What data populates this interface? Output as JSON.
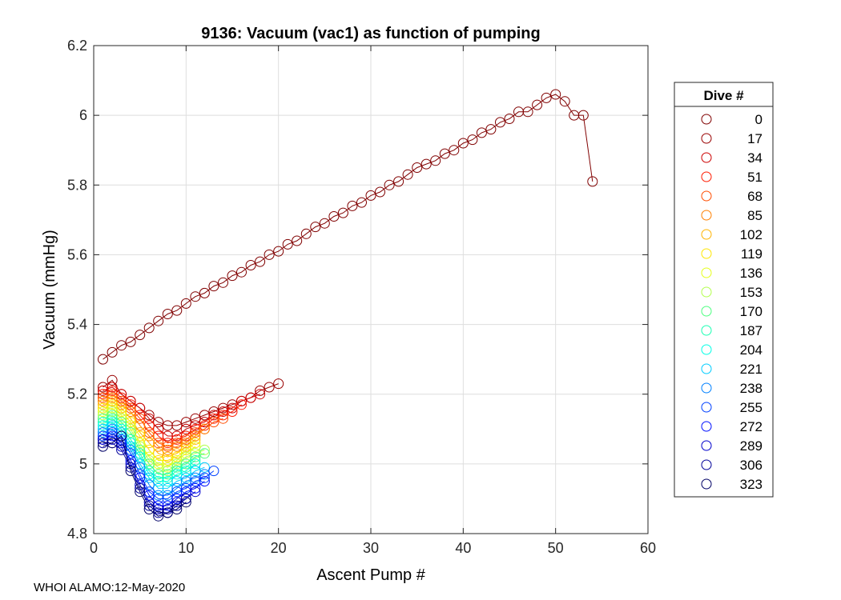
{
  "chart_data": {
    "type": "scatter",
    "title": "9136: Vacuum (vac1) as function of pumping",
    "xlabel": "Ascent Pump #",
    "ylabel": "Vacuum (mmHg)",
    "xlim": [
      0,
      60
    ],
    "ylim": [
      4.8,
      6.2
    ],
    "xticks": [
      0,
      10,
      20,
      30,
      40,
      50,
      60
    ],
    "yticks": [
      4.8,
      5,
      5.2,
      5.4,
      5.6,
      5.8,
      6,
      6.2
    ],
    "grid": true,
    "legend": {
      "title": "Dive #",
      "placement": "right",
      "entries": [
        {
          "label": "0",
          "color": "#800000"
        },
        {
          "label": "17",
          "color": "#990000"
        },
        {
          "label": "34",
          "color": "#cc0000"
        },
        {
          "label": "51",
          "color": "#ff1a00"
        },
        {
          "label": "68",
          "color": "#ff4d00"
        },
        {
          "label": "85",
          "color": "#ff8000"
        },
        {
          "label": "102",
          "color": "#ffb300"
        },
        {
          "label": "119",
          "color": "#ffe600"
        },
        {
          "label": "136",
          "color": "#e6ff1a"
        },
        {
          "label": "153",
          "color": "#b3ff4d"
        },
        {
          "label": "170",
          "color": "#4dff80"
        },
        {
          "label": "187",
          "color": "#1affb3"
        },
        {
          "label": "204",
          "color": "#00ffe6"
        },
        {
          "label": "221",
          "color": "#00ccff"
        },
        {
          "label": "238",
          "color": "#0080ff"
        },
        {
          "label": "255",
          "color": "#0040ff"
        },
        {
          "label": "272",
          "color": "#0010ff"
        },
        {
          "label": "289",
          "color": "#0000cc"
        },
        {
          "label": "306",
          "color": "#000099"
        },
        {
          "label": "323",
          "color": "#000066"
        }
      ]
    },
    "series": [
      {
        "name": "0",
        "color": "#800000",
        "x": [
          1,
          2,
          3,
          4,
          5,
          6,
          7,
          8,
          9,
          10,
          11,
          12,
          13,
          14,
          15,
          16,
          17,
          18,
          19,
          20,
          21,
          22,
          23,
          24,
          25,
          26,
          27,
          28,
          29,
          30,
          31,
          32,
          33,
          34,
          35,
          36,
          37,
          38,
          39,
          40,
          41,
          42,
          43,
          44,
          45,
          46,
          47,
          48,
          49,
          50,
          51,
          52,
          53,
          54
        ],
        "y": [
          5.3,
          5.32,
          5.34,
          5.35,
          5.37,
          5.39,
          5.41,
          5.43,
          5.44,
          5.46,
          5.48,
          5.49,
          5.51,
          5.52,
          5.54,
          5.55,
          5.57,
          5.58,
          5.6,
          5.61,
          5.63,
          5.64,
          5.66,
          5.68,
          5.69,
          5.71,
          5.72,
          5.74,
          5.75,
          5.77,
          5.78,
          5.8,
          5.81,
          5.83,
          5.85,
          5.86,
          5.87,
          5.89,
          5.9,
          5.92,
          5.93,
          5.95,
          5.96,
          5.98,
          5.99,
          6.01,
          6.01,
          6.03,
          6.05,
          6.06,
          6.04,
          6.0,
          6.0,
          5.81
        ]
      },
      {
        "name": "17",
        "color": "#990000",
        "x": [
          1,
          2,
          3,
          4,
          5,
          6,
          7,
          8,
          9,
          10,
          11,
          12,
          13,
          14,
          15,
          16,
          17,
          18,
          19,
          20
        ],
        "y": [
          5.22,
          5.24,
          5.2,
          5.18,
          5.16,
          5.14,
          5.12,
          5.11,
          5.11,
          5.12,
          5.13,
          5.14,
          5.15,
          5.16,
          5.17,
          5.18,
          5.19,
          5.21,
          5.22,
          5.23
        ]
      },
      {
        "name": "34",
        "color": "#cc0000",
        "x": [
          1,
          2,
          3,
          4,
          5,
          6,
          7,
          8,
          9,
          10,
          11,
          12,
          13,
          14,
          15,
          16,
          17,
          18
        ],
        "y": [
          5.21,
          5.22,
          5.2,
          5.18,
          5.16,
          5.13,
          5.1,
          5.08,
          5.08,
          5.1,
          5.11,
          5.12,
          5.14,
          5.15,
          5.16,
          5.18,
          5.19,
          5.2
        ]
      },
      {
        "name": "51",
        "color": "#ff1a00",
        "x": [
          1,
          2,
          3,
          4,
          5,
          6,
          7,
          8,
          9,
          10,
          11,
          12,
          13,
          14,
          15,
          16
        ],
        "y": [
          5.2,
          5.21,
          5.19,
          5.17,
          5.14,
          5.11,
          5.08,
          5.06,
          5.07,
          5.08,
          5.1,
          5.11,
          5.13,
          5.14,
          5.15,
          5.17
        ]
      },
      {
        "name": "68",
        "color": "#ff4d00",
        "x": [
          1,
          2,
          3,
          4,
          5,
          6,
          7,
          8,
          9,
          10,
          11,
          12,
          13,
          14
        ],
        "y": [
          5.19,
          5.2,
          5.18,
          5.16,
          5.13,
          5.09,
          5.06,
          5.05,
          5.06,
          5.07,
          5.09,
          5.1,
          5.12,
          5.13
        ]
      },
      {
        "name": "85",
        "color": "#ff8000",
        "x": [
          1,
          2,
          3,
          4,
          5,
          6,
          7,
          8,
          9,
          10,
          11,
          12
        ],
        "y": [
          5.18,
          5.19,
          5.17,
          5.15,
          5.11,
          5.08,
          5.05,
          5.04,
          5.05,
          5.06,
          5.08,
          5.1
        ]
      },
      {
        "name": "102",
        "color": "#ffb300",
        "x": [
          1,
          2,
          3,
          4,
          5,
          6,
          7,
          8,
          9,
          10,
          11
        ],
        "y": [
          5.17,
          5.18,
          5.16,
          5.13,
          5.09,
          5.06,
          5.03,
          5.02,
          5.03,
          5.05,
          5.07
        ]
      },
      {
        "name": "119",
        "color": "#ffe600",
        "x": [
          1,
          2,
          3,
          4,
          5,
          6,
          7,
          8,
          9,
          10,
          11
        ],
        "y": [
          5.16,
          5.17,
          5.15,
          5.12,
          5.08,
          5.04,
          5.01,
          5.01,
          5.02,
          5.04,
          5.06
        ]
      },
      {
        "name": "136",
        "color": "#e6ff1a",
        "x": [
          1,
          2,
          3,
          4,
          5,
          6,
          7,
          8,
          9,
          10,
          11
        ],
        "y": [
          5.15,
          5.16,
          5.14,
          5.11,
          5.06,
          5.02,
          5.0,
          4.99,
          5.01,
          5.03,
          5.05
        ]
      },
      {
        "name": "153",
        "color": "#b3ff4d",
        "x": [
          1,
          2,
          3,
          4,
          5,
          6,
          7,
          8,
          9,
          10,
          11,
          12
        ],
        "y": [
          5.14,
          5.15,
          5.13,
          5.1,
          5.05,
          5.01,
          4.99,
          4.98,
          5.0,
          5.02,
          5.03,
          5.04
        ]
      },
      {
        "name": "170",
        "color": "#4dff80",
        "x": [
          1,
          2,
          3,
          4,
          5,
          6,
          7,
          8,
          9,
          10,
          11,
          12
        ],
        "y": [
          5.13,
          5.14,
          5.12,
          5.09,
          5.04,
          5.0,
          4.97,
          4.97,
          4.99,
          5.0,
          5.02,
          5.03
        ]
      },
      {
        "name": "187",
        "color": "#1affb3",
        "x": [
          1,
          2,
          3,
          4,
          5,
          6,
          7,
          8,
          9,
          10,
          11
        ],
        "y": [
          5.12,
          5.13,
          5.11,
          5.07,
          5.03,
          4.98,
          4.96,
          4.96,
          4.98,
          4.99,
          5.01
        ]
      },
      {
        "name": "204",
        "color": "#00ffe6",
        "x": [
          1,
          2,
          3,
          4,
          5,
          6,
          7,
          8,
          9,
          10,
          11
        ],
        "y": [
          5.11,
          5.12,
          5.1,
          5.06,
          5.02,
          4.97,
          4.95,
          4.95,
          4.97,
          4.98,
          5.0
        ]
      },
      {
        "name": "221",
        "color": "#00ccff",
        "x": [
          1,
          2,
          3,
          4,
          5,
          6,
          7,
          8,
          9,
          10,
          11,
          12
        ],
        "y": [
          5.1,
          5.11,
          5.09,
          5.05,
          5.0,
          4.96,
          4.93,
          4.93,
          4.95,
          4.96,
          4.98,
          4.99
        ]
      },
      {
        "name": "238",
        "color": "#0080ff",
        "x": [
          1,
          2,
          3,
          4,
          5,
          6,
          7,
          8,
          9,
          10,
          11,
          12
        ],
        "y": [
          5.09,
          5.1,
          5.08,
          5.04,
          4.99,
          4.94,
          4.91,
          4.91,
          4.93,
          4.95,
          4.96,
          4.97
        ]
      },
      {
        "name": "255",
        "color": "#0040ff",
        "x": [
          1,
          2,
          3,
          4,
          5,
          6,
          7,
          8,
          9,
          10,
          11,
          12,
          13
        ],
        "y": [
          5.08,
          5.09,
          5.07,
          5.03,
          4.97,
          4.92,
          4.9,
          4.9,
          4.92,
          4.93,
          4.95,
          4.96,
          4.98
        ]
      },
      {
        "name": "272",
        "color": "#0010ff",
        "x": [
          1,
          2,
          3,
          4,
          5,
          6,
          7,
          8,
          9,
          10,
          11,
          12
        ],
        "y": [
          5.07,
          5.08,
          5.06,
          5.01,
          4.96,
          4.91,
          4.88,
          4.88,
          4.9,
          4.92,
          4.93,
          4.95
        ]
      },
      {
        "name": "289",
        "color": "#0000cc",
        "x": [
          1,
          2,
          3,
          4,
          5,
          6,
          7,
          8,
          9,
          10,
          11
        ],
        "y": [
          5.07,
          5.07,
          5.05,
          5.0,
          4.94,
          4.89,
          4.87,
          4.87,
          4.89,
          4.9,
          4.92
        ]
      },
      {
        "name": "306",
        "color": "#000099",
        "x": [
          1,
          2,
          3,
          4,
          5,
          6,
          7,
          8,
          9,
          10
        ],
        "y": [
          5.06,
          5.06,
          5.04,
          4.99,
          4.93,
          4.88,
          4.86,
          4.86,
          4.88,
          4.9
        ]
      },
      {
        "name": "323",
        "color": "#000066",
        "x": [
          1,
          2,
          3,
          4,
          5,
          6,
          7,
          8,
          9,
          10
        ],
        "y": [
          5.05,
          5.06,
          5.08,
          4.98,
          4.92,
          4.87,
          4.85,
          4.86,
          4.87,
          4.89
        ]
      }
    ]
  },
  "footer": "WHOI ALAMO:12-May-2020"
}
